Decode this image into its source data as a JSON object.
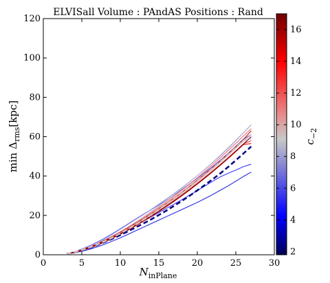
{
  "chart_data": {
    "type": "line",
    "title": "ELVISall   Volume : PAndAS   Positions : Rand",
    "xlabel": "N",
    "xlabel_sub": "inPlane",
    "ylabel": "min Δ",
    "ylabel_sub": "rms",
    "ylabel_unit": "[kpc]",
    "xlim": [
      0,
      30
    ],
    "ylim": [
      0,
      120
    ],
    "x_ticks": [
      0,
      5,
      10,
      15,
      20,
      25,
      30
    ],
    "y_ticks": [
      0,
      20,
      40,
      60,
      80,
      100,
      120
    ],
    "grid": false,
    "colorbar": {
      "label": "c",
      "label_sub": "−2",
      "range": [
        1.8,
        17
      ],
      "ticks": [
        2,
        4,
        6,
        8,
        10,
        12,
        14,
        16
      ],
      "colormap": [
        "#00005a",
        "#0000ff",
        "#8c8cd2",
        "#c8c8c8",
        "#e68c8c",
        "#ff0000",
        "#6e0000"
      ]
    },
    "x": [
      3,
      4,
      5,
      6,
      7,
      8,
      9,
      10,
      11,
      12,
      13,
      14,
      15,
      16,
      17,
      18,
      19,
      20,
      21,
      22,
      23,
      24,
      25,
      26,
      27
    ],
    "series": [
      {
        "c": 2.5,
        "color": "#0a0a80",
        "style": "dashed",
        "values": [
          0.5,
          1.2,
          2.2,
          3.4,
          4.9,
          6.5,
          8.2,
          10.0,
          11.9,
          13.9,
          15.9,
          18.0,
          20.2,
          22.5,
          24.9,
          27.4,
          30.0,
          32.7,
          35.5,
          38.4,
          41.4,
          44.6,
          48.0,
          51.5,
          55.0
        ]
      },
      {
        "c": 3.5,
        "color": "#1414e0",
        "style": "solid",
        "values": [
          0.4,
          1.0,
          1.8,
          2.8,
          4.0,
          5.4,
          7.0,
          8.6,
          10.4,
          12.2,
          14.0,
          15.8,
          17.6,
          19.4,
          21.2,
          23.0,
          24.8,
          26.6,
          28.6,
          30.6,
          32.8,
          35.0,
          37.4,
          39.8,
          42.0
        ]
      },
      {
        "c": 5.0,
        "color": "#2a2aff",
        "style": "solid",
        "values": [
          0.6,
          1.4,
          2.5,
          3.8,
          5.3,
          7.0,
          8.8,
          10.8,
          12.9,
          15.0,
          17.1,
          19.2,
          21.4,
          23.6,
          25.8,
          28.0,
          30.3,
          32.6,
          35.0,
          37.4,
          39.6,
          41.4,
          43.0,
          44.8,
          46.0
        ]
      },
      {
        "c": 6.0,
        "color": "#5050e8",
        "style": "solid",
        "values": [
          0.5,
          1.5,
          2.9,
          4.5,
          6.4,
          8.5,
          10.8,
          13.2,
          15.7,
          18.2,
          20.6,
          22.9,
          25.3,
          27.8,
          30.4,
          33.1,
          35.9,
          38.8,
          41.8,
          44.9,
          48.1,
          51.5,
          55.1,
          58.8,
          61.0
        ]
      },
      {
        "c": 7.0,
        "color": "#7070dc",
        "style": "solid",
        "values": [
          0.5,
          1.3,
          2.4,
          3.7,
          5.2,
          6.9,
          8.7,
          10.7,
          12.8,
          15.0,
          17.3,
          19.7,
          22.2,
          24.8,
          27.5,
          30.3,
          33.2,
          36.2,
          39.3,
          42.5,
          45.8,
          49.2,
          52.7,
          56.3,
          60.0
        ]
      },
      {
        "c": 8.0,
        "color": "#9a9ad8",
        "style": "solid",
        "values": [
          0.3,
          1.1,
          2.3,
          3.9,
          5.8,
          8.0,
          10.4,
          12.9,
          15.4,
          17.9,
          20.4,
          23.0,
          25.7,
          28.4,
          31.2,
          34.1,
          37.1,
          40.2,
          43.4,
          46.8,
          50.3,
          54.0,
          57.9,
          62.0,
          66.0
        ]
      },
      {
        "c": 9.0,
        "color": "#b8b8d0",
        "style": "solid",
        "values": [
          0.6,
          1.5,
          2.7,
          4.1,
          5.7,
          7.5,
          9.5,
          11.7,
          14.1,
          16.6,
          19.2,
          21.9,
          24.7,
          27.6,
          30.6,
          33.7,
          36.9,
          40.2,
          43.6,
          47.1,
          50.7,
          54.4,
          58.2,
          62.1,
          66.0
        ]
      },
      {
        "c": 11.0,
        "color": "#e0a0a0",
        "style": "solid",
        "values": [
          0.4,
          1.2,
          2.3,
          3.6,
          5.1,
          6.8,
          8.7,
          10.7,
          12.9,
          15.2,
          17.6,
          20.1,
          22.7,
          25.4,
          28.2,
          31.1,
          34.1,
          37.2,
          40.4,
          43.7,
          47.1,
          50.6,
          54.2,
          57.9,
          61.0
        ]
      },
      {
        "c": 12.5,
        "color": "#f06060",
        "style": "solid",
        "values": [
          0.5,
          1.4,
          2.6,
          4.0,
          5.6,
          7.4,
          9.4,
          11.6,
          13.9,
          16.3,
          18.8,
          21.4,
          24.1,
          26.9,
          29.8,
          32.8,
          35.9,
          39.1,
          42.4,
          45.8,
          49.3,
          52.9,
          56.6,
          60.4,
          64.0
        ]
      },
      {
        "c": 13.5,
        "color": "#ff2020",
        "style": "solid",
        "values": [
          0.5,
          1.3,
          2.4,
          3.7,
          5.2,
          6.9,
          8.8,
          10.8,
          12.9,
          15.1,
          17.4,
          19.8,
          22.3,
          24.9,
          27.6,
          30.4,
          33.3,
          36.3,
          39.4,
          42.6,
          45.9,
          49.3,
          52.8,
          56.4,
          58.0
        ]
      },
      {
        "c": 14.5,
        "color": "#e00000",
        "style": "solid",
        "values": [
          0.4,
          1.1,
          2.1,
          3.3,
          4.8,
          6.5,
          8.4,
          10.4,
          12.5,
          14.7,
          17.0,
          19.4,
          21.9,
          24.5,
          27.2,
          30.0,
          32.9,
          35.9,
          39.0,
          42.2,
          45.5,
          48.9,
          52.4,
          56.0,
          56.5
        ]
      },
      {
        "c": 15.5,
        "color": "#b00000",
        "style": "solid",
        "values": [
          0.5,
          1.3,
          2.5,
          3.9,
          5.5,
          7.3,
          9.3,
          11.4,
          13.6,
          15.9,
          18.3,
          20.8,
          23.4,
          26.1,
          28.9,
          31.8,
          34.8,
          37.9,
          41.1,
          44.4,
          47.8,
          51.3,
          54.9,
          58.6,
          63.0
        ]
      },
      {
        "c": 16.5,
        "color": "#6e0000",
        "style": "solid",
        "values": [
          0.5,
          1.2,
          2.3,
          3.6,
          5.1,
          6.8,
          8.6,
          10.6,
          12.7,
          14.9,
          17.2,
          19.6,
          22.1,
          24.7,
          27.4,
          30.2,
          33.1,
          36.1,
          39.2,
          42.4,
          45.7,
          49.1,
          52.6,
          56.2,
          60.0
        ]
      },
      {
        "c": 10.0,
        "color": "#d0c0c0",
        "style": "dashed",
        "values": [
          0.5,
          1.3,
          2.4,
          3.7,
          5.2,
          6.9,
          8.8,
          10.9,
          13.1,
          15.4,
          17.8,
          20.3,
          22.9,
          25.6,
          28.4,
          31.3,
          34.3,
          37.4,
          40.6,
          43.9,
          47.3,
          50.8,
          54.4,
          58.1,
          59.0
        ]
      }
    ]
  }
}
